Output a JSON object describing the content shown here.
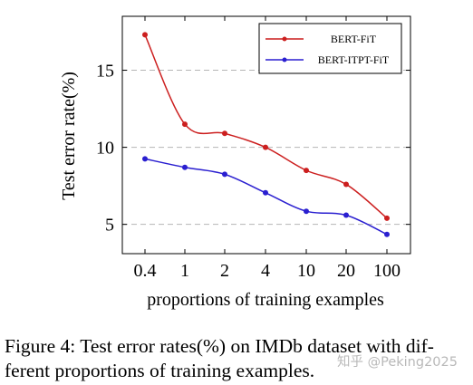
{
  "chart_data": {
    "type": "line",
    "categories": [
      "0.4",
      "1",
      "2",
      "4",
      "10",
      "20",
      "100"
    ],
    "series": [
      {
        "name": "BERT-FiT",
        "color": "#cc1f1f",
        "values": [
          17.3,
          11.5,
          10.9,
          10.0,
          8.5,
          7.6,
          5.4
        ]
      },
      {
        "name": "BERT-ITPT-FiT",
        "color": "#2a1fd0",
        "values": [
          9.25,
          8.7,
          8.25,
          7.05,
          5.85,
          5.6,
          4.35
        ]
      }
    ],
    "xlabel": "proportions of training examples",
    "ylabel": "Test error rate(%)",
    "ylim": [
      3.1,
      18.5
    ],
    "yticks": [
      5,
      10,
      15
    ],
    "grid": "horizontal dashed",
    "legend_position": "top-right"
  },
  "caption": {
    "line1": "Figure 4: Test error rates(%) on IMDb dataset with dif-",
    "line2": "ferent proportions of training examples."
  },
  "watermark": "知乎 @Peking2025"
}
